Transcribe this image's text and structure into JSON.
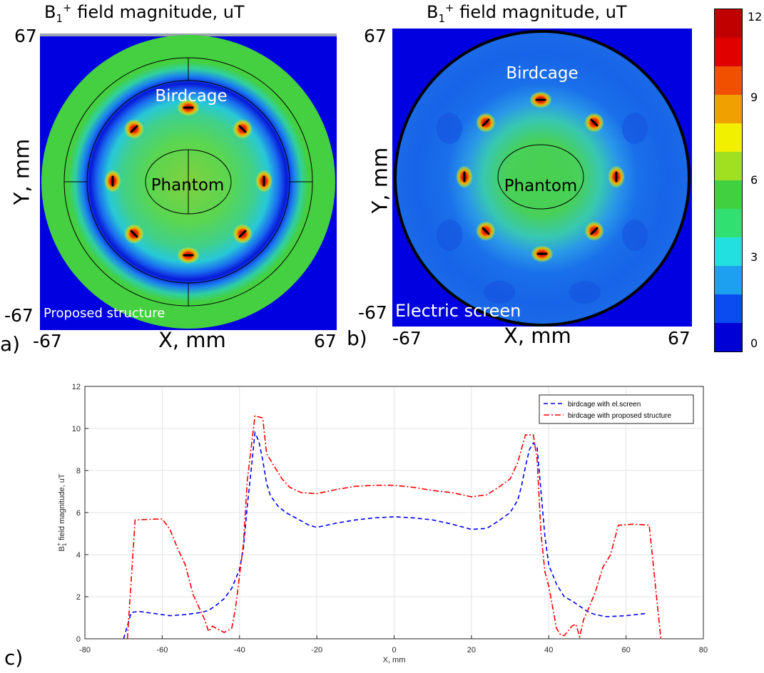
{
  "panel_a": {
    "letter": "a)",
    "title_main": "B",
    "title_sub": "1",
    "title_sup": "+",
    "title_rest": " field magnitude, uT",
    "y_label": "Y, mm",
    "x_label": "X, mm",
    "y_top": "67",
    "y_bottom": "-67",
    "x_left": "-67",
    "x_right": "67",
    "label_birdcage": "Birdcage",
    "label_phantom": "Phantom",
    "label_corner": "Proposed structure"
  },
  "panel_b": {
    "letter": "b)",
    "title_main": "B",
    "title_sub": "1",
    "title_sup": "+",
    "title_rest": " field magnitude, uT",
    "y_label": "Y, mm",
    "x_label": "X, mm",
    "y_top": "67",
    "y_bottom": "-67",
    "x_left": "-67",
    "x_right": "67",
    "label_birdcage": "Birdcage",
    "label_phantom": "Phantom",
    "label_corner": "Electric screen"
  },
  "colorbar": {
    "ticks": [
      "12",
      "9",
      "6",
      "3",
      "0"
    ],
    "colors": [
      "#0000d6",
      "#0a4cf0",
      "#1ea0f0",
      "#22e0e0",
      "#30e070",
      "#40d040",
      "#a0e020",
      "#f0f000",
      "#f0a000",
      "#f05000",
      "#e00000",
      "#c00000"
    ]
  },
  "panel_c": {
    "letter": "c)"
  },
  "chart_data": [
    {
      "type": "heatmap",
      "title": "B1+ field magnitude, uT",
      "xlabel": "X, mm",
      "ylabel": "Y, mm",
      "xlim": [
        -67,
        67
      ],
      "ylim": [
        -67,
        67
      ],
      "colorbar_range": [
        0,
        12
      ],
      "colorbar_ticks": [
        0,
        3,
        6,
        9,
        12
      ],
      "annotations": [
        "Birdcage",
        "Phantom",
        "Proposed structure"
      ]
    },
    {
      "type": "heatmap",
      "title": "B1+ field magnitude, uT",
      "xlabel": "X, mm",
      "ylabel": "Y, mm",
      "xlim": [
        -67,
        67
      ],
      "ylim": [
        -67,
        67
      ],
      "colorbar_range": [
        0,
        12
      ],
      "colorbar_ticks": [
        0,
        3,
        6,
        9,
        12
      ],
      "annotations": [
        "Birdcage",
        "Phantom",
        "Electric screen"
      ]
    },
    {
      "type": "line",
      "xlabel": "X, mm",
      "ylabel_main": "B",
      "ylabel_sub": "1",
      "ylabel_sup": "+",
      "ylabel_rest": " field magnitude, uT",
      "xlim": [
        -80,
        80
      ],
      "ylim": [
        0,
        12
      ],
      "xticks": [
        -80,
        -60,
        -40,
        -20,
        0,
        20,
        40,
        60,
        80
      ],
      "yticks": [
        0,
        2,
        4,
        6,
        8,
        10,
        12
      ],
      "grid": true,
      "legend_position": "top-right",
      "series": [
        {
          "name": "birdcage with el.screen",
          "color": "#0000ff",
          "dash": "dashed",
          "points": [
            [
              -70,
              0
            ],
            [
              -68,
              1.25
            ],
            [
              -66,
              1.3
            ],
            [
              -62,
              1.2
            ],
            [
              -58,
              1.1
            ],
            [
              -54,
              1.15
            ],
            [
              -50,
              1.25
            ],
            [
              -48,
              1.35
            ],
            [
              -46,
              1.6
            ],
            [
              -44,
              1.9
            ],
            [
              -42,
              2.4
            ],
            [
              -40,
              3.3
            ],
            [
              -39,
              4.3
            ],
            [
              -38,
              6.3
            ],
            [
              -37,
              8.0
            ],
            [
              -36,
              9.8
            ],
            [
              -35,
              9.4
            ],
            [
              -34,
              8.5
            ],
            [
              -33,
              7.4
            ],
            [
              -32,
              6.8
            ],
            [
              -30,
              6.3
            ],
            [
              -28,
              6.0
            ],
            [
              -25,
              5.7
            ],
            [
              -22,
              5.4
            ],
            [
              -20,
              5.3
            ],
            [
              -15,
              5.5
            ],
            [
              -10,
              5.65
            ],
            [
              -5,
              5.75
            ],
            [
              0,
              5.8
            ],
            [
              5,
              5.75
            ],
            [
              10,
              5.65
            ],
            [
              15,
              5.45
            ],
            [
              20,
              5.2
            ],
            [
              24,
              5.25
            ],
            [
              27,
              5.6
            ],
            [
              30,
              6.0
            ],
            [
              32,
              6.6
            ],
            [
              33,
              7.3
            ],
            [
              34,
              8.2
            ],
            [
              35,
              9.0
            ],
            [
              36,
              9.3
            ],
            [
              37,
              9.1
            ],
            [
              38,
              7.0
            ],
            [
              39,
              4.9
            ],
            [
              40,
              3.5
            ],
            [
              42,
              2.6
            ],
            [
              44,
              2.0
            ],
            [
              46,
              1.8
            ],
            [
              48,
              1.55
            ],
            [
              50,
              1.3
            ],
            [
              52,
              1.15
            ],
            [
              55,
              1.05
            ],
            [
              60,
              1.1
            ],
            [
              65,
              1.2
            ]
          ]
        },
        {
          "name": "birdcage with proposed structure",
          "color": "#ff0000",
          "dash": "dashdot",
          "points": [
            [
              -69,
              0
            ],
            [
              -67,
              5.65
            ],
            [
              -60,
              5.7
            ],
            [
              -58,
              5.2
            ],
            [
              -56,
              4.3
            ],
            [
              -54,
              3.5
            ],
            [
              -52,
              2.1
            ],
            [
              -50,
              1.3
            ],
            [
              -49,
              0.9
            ],
            [
              -48,
              0.35
            ],
            [
              -47,
              0.6
            ],
            [
              -45,
              0.4
            ],
            [
              -44,
              0.3
            ],
            [
              -42,
              0.5
            ],
            [
              -41,
              1.5
            ],
            [
              -39,
              4.5
            ],
            [
              -38,
              7.5
            ],
            [
              -36,
              10.6
            ],
            [
              -34,
              10.5
            ],
            [
              -33,
              8.8
            ],
            [
              -31,
              8.2
            ],
            [
              -29,
              7.6
            ],
            [
              -27,
              7.2
            ],
            [
              -24,
              6.95
            ],
            [
              -20,
              6.9
            ],
            [
              -15,
              7.1
            ],
            [
              -10,
              7.25
            ],
            [
              -5,
              7.3
            ],
            [
              0,
              7.3
            ],
            [
              5,
              7.2
            ],
            [
              10,
              7.05
            ],
            [
              15,
              6.95
            ],
            [
              20,
              6.75
            ],
            [
              24,
              6.85
            ],
            [
              27,
              7.2
            ],
            [
              30,
              7.6
            ],
            [
              32,
              8.4
            ],
            [
              34,
              9.7
            ],
            [
              36,
              9.7
            ],
            [
              37,
              8.5
            ],
            [
              38,
              5.0
            ],
            [
              39,
              3.2
            ],
            [
              40,
              2.5
            ],
            [
              41,
              1.5
            ],
            [
              42,
              0.5
            ],
            [
              43,
              0.2
            ],
            [
              44,
              0.15
            ],
            [
              46,
              0.6
            ],
            [
              47,
              0.7
            ],
            [
              48,
              0.1
            ],
            [
              49,
              0.9
            ],
            [
              50,
              1.3
            ],
            [
              52,
              2.2
            ],
            [
              54,
              3.4
            ],
            [
              56,
              4.0
            ],
            [
              58,
              5.4
            ],
            [
              62,
              5.45
            ],
            [
              66,
              5.4
            ],
            [
              69,
              0
            ]
          ]
        }
      ]
    }
  ]
}
